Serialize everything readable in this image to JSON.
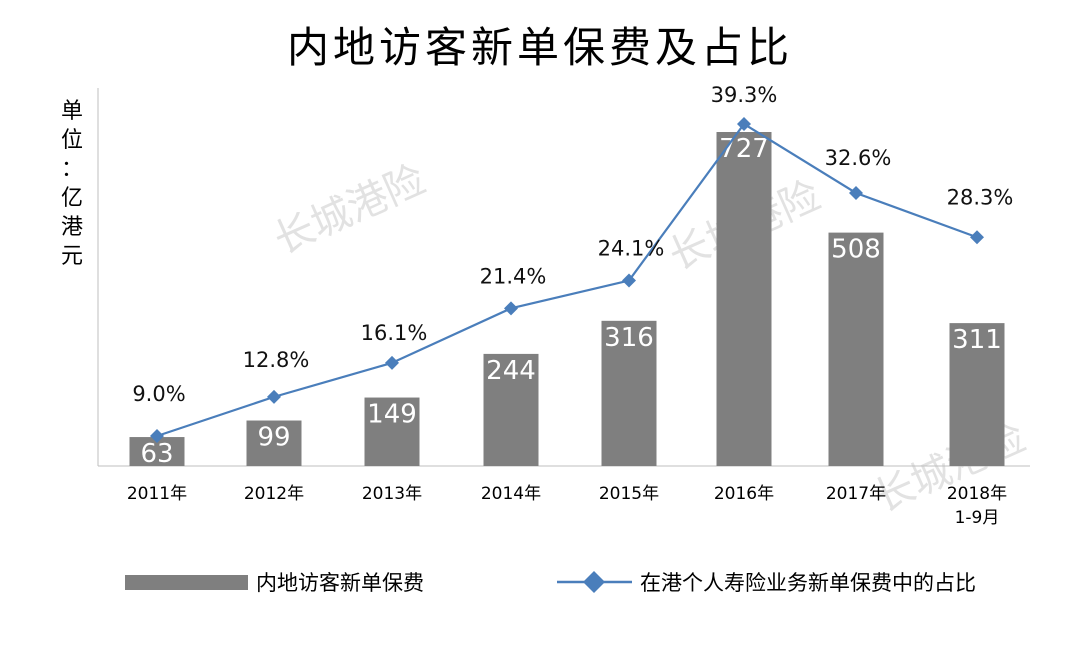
{
  "chart_data": {
    "type": "bar+line",
    "title": "内地访客新单保费及占比",
    "ylabel": "单位：亿港元",
    "categories": [
      "2011年",
      "2012年",
      "2013年",
      "2014年",
      "2015年",
      "2016年",
      "2017年",
      "2018年\n1-9月"
    ],
    "series": [
      {
        "name": "内地访客新单保费",
        "type": "bar",
        "values": [
          63,
          99,
          149,
          244,
          316,
          727,
          508,
          311
        ],
        "color": "#7f7f7f"
      },
      {
        "name": "在港个人寿险业务新单保费中的占比",
        "type": "line",
        "values": [
          9.0,
          12.8,
          16.1,
          21.4,
          24.1,
          39.3,
          32.6,
          28.3
        ],
        "labels": [
          "9.0%",
          "12.8%",
          "16.1%",
          "21.4%",
          "24.1%",
          "39.3%",
          "32.6%",
          "28.3%"
        ],
        "color": "#4a7ebb",
        "marker": "diamond"
      }
    ],
    "ylim_bar": [
      0,
      800
    ],
    "ylim_line": [
      0,
      42
    ],
    "grid": false,
    "legend": "bottom"
  },
  "watermark": "长城港险"
}
